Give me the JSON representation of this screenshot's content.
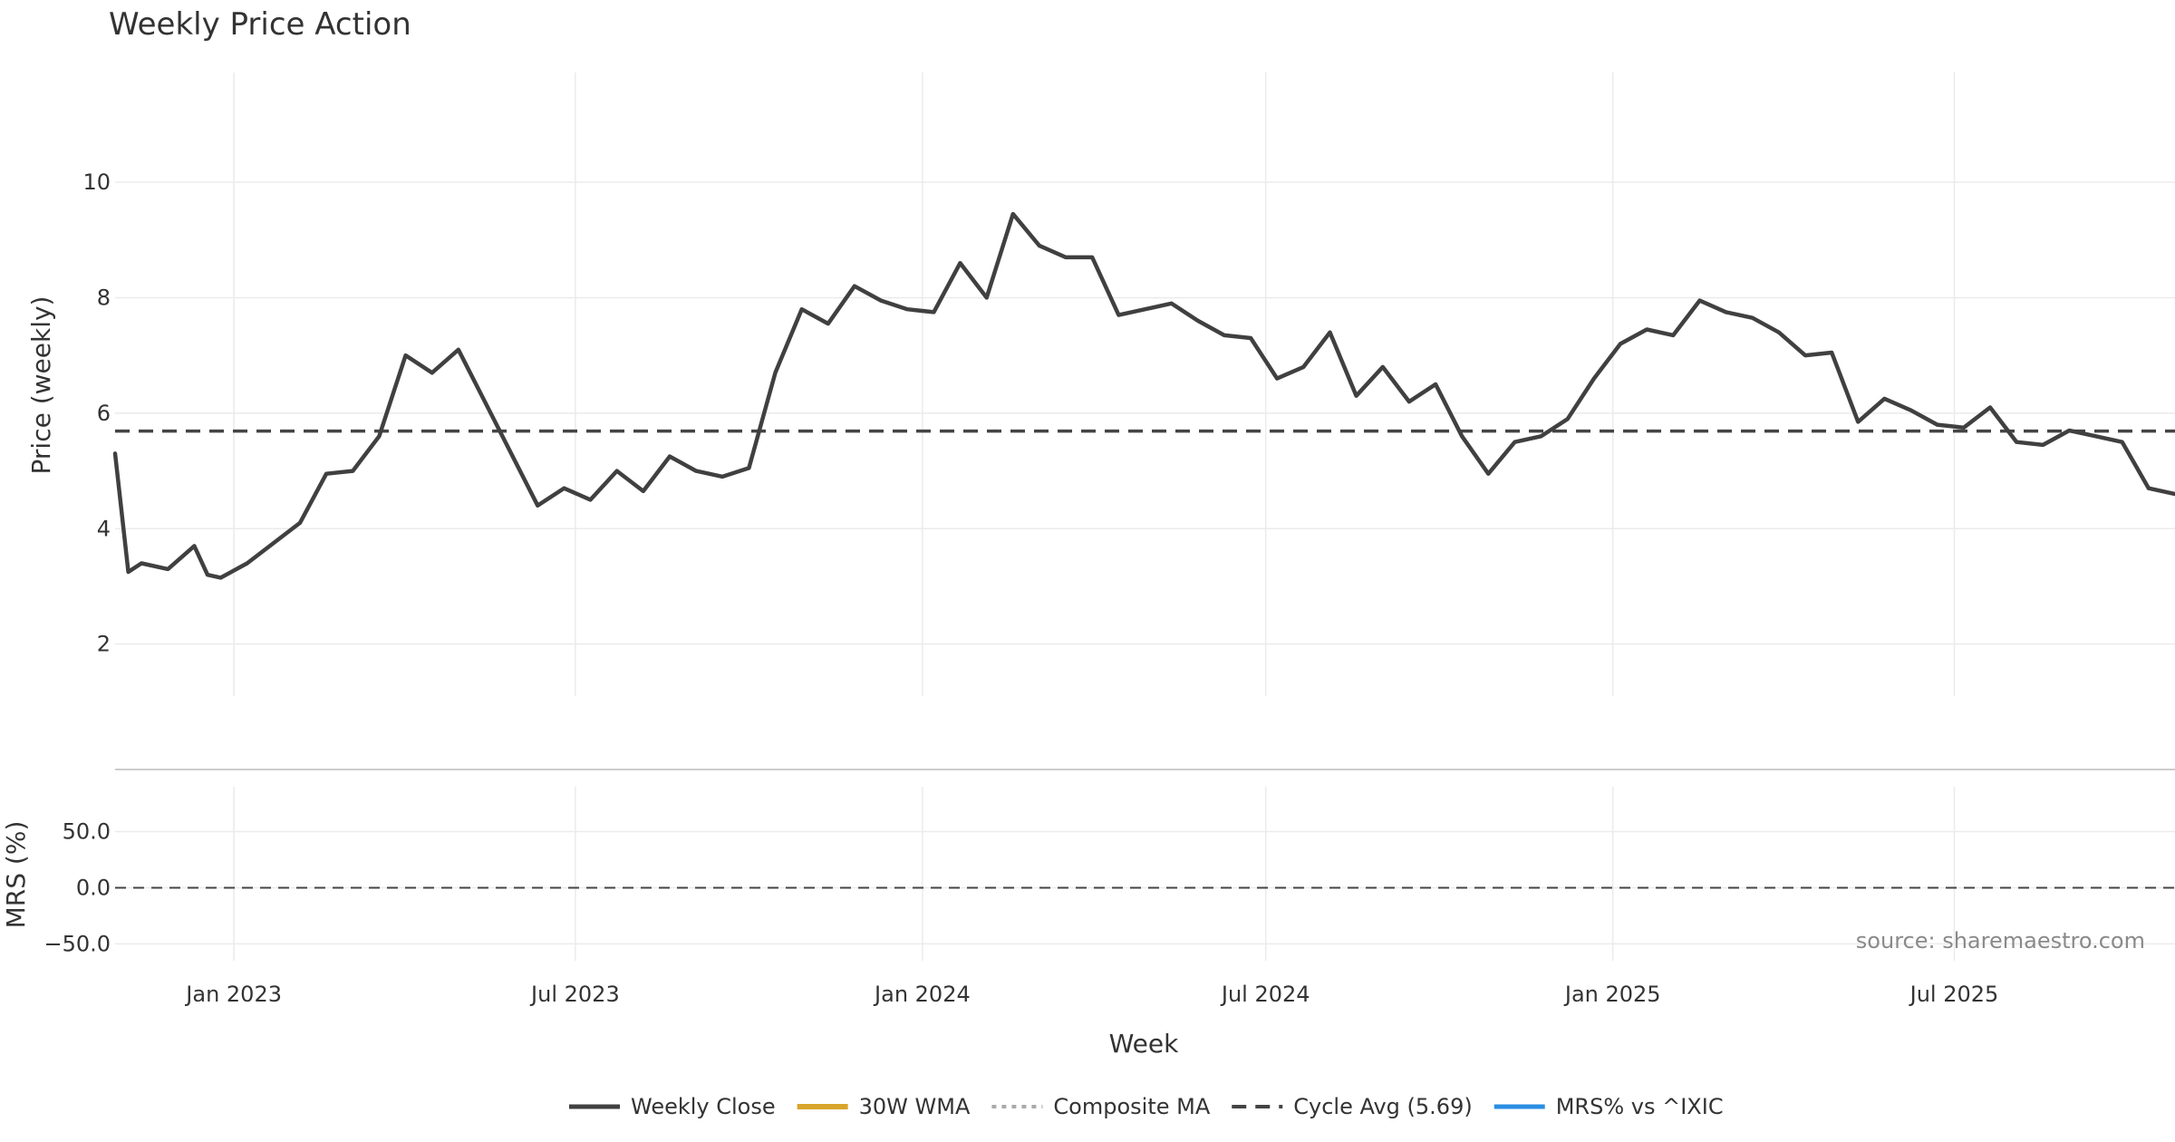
{
  "chart_data": {
    "type": "line",
    "title": "Weekly Price Action",
    "xlabel": "Week",
    "x_ticks": [
      "Jan 2023",
      "Jul 2023",
      "Jan 2024",
      "Jul 2024",
      "Jan 2025",
      "Jul 2025"
    ],
    "x_tick_dates": [
      "2023-01-01",
      "2023-07-01",
      "2024-01-01",
      "2024-07-01",
      "2025-01-01",
      "2025-07-01"
    ],
    "x_range": [
      "2022-10-30",
      "2025-10-26"
    ],
    "source": "source: sharemaestro.com",
    "colors": {
      "close": "#404040",
      "wma": "#d8a52b",
      "composite": "#aaaaaa",
      "cycle": "#444444",
      "mrs": "#2a8ee3",
      "buy": "#1a9e1a",
      "sell": "#cc1111",
      "grid": "#ebebeb"
    },
    "price_panel": {
      "ylabel": "Price (weekly)",
      "ylim": [
        1.1,
        11.9
      ],
      "y_ticks": [
        2,
        4,
        6,
        8,
        10
      ],
      "cycle_avg": 5.69
    },
    "mrs_panel": {
      "ylabel": "MRS (%)",
      "ylim": [
        -65,
        90
      ],
      "y_ticks": [
        50,
        0,
        -50
      ],
      "y_tick_labels": [
        "50.0",
        "0.0",
        "−50.0"
      ]
    },
    "series": [
      {
        "name": "Weekly Close",
        "key": "close",
        "points": [
          [
            "2022-10-30",
            5.3
          ],
          [
            "2022-11-06",
            3.25
          ],
          [
            "2022-11-13",
            3.4
          ],
          [
            "2022-11-27",
            3.3
          ],
          [
            "2022-12-11",
            3.7
          ],
          [
            "2022-12-18",
            3.2
          ],
          [
            "2022-12-25",
            3.15
          ],
          [
            "2023-01-08",
            3.4
          ],
          [
            "2023-02-05",
            4.1
          ],
          [
            "2023-02-19",
            4.95
          ],
          [
            "2023-03-05",
            5.0
          ],
          [
            "2023-03-19",
            5.6
          ],
          [
            "2023-04-02",
            7.0
          ],
          [
            "2023-04-16",
            6.7
          ],
          [
            "2023-04-30",
            7.1
          ],
          [
            "2023-05-14",
            6.2
          ],
          [
            "2023-05-28",
            5.3
          ],
          [
            "2023-06-11",
            4.4
          ],
          [
            "2023-06-25",
            4.7
          ],
          [
            "2023-07-09",
            4.5
          ],
          [
            "2023-07-23",
            5.0
          ],
          [
            "2023-08-06",
            4.65
          ],
          [
            "2023-08-20",
            5.25
          ],
          [
            "2023-09-03",
            5.0
          ],
          [
            "2023-09-17",
            4.9
          ],
          [
            "2023-10-01",
            5.05
          ],
          [
            "2023-10-15",
            6.7
          ],
          [
            "2023-10-29",
            7.8
          ],
          [
            "2023-11-12",
            7.55
          ],
          [
            "2023-11-26",
            8.2
          ],
          [
            "2023-12-10",
            7.95
          ],
          [
            "2023-12-24",
            7.8
          ],
          [
            "2024-01-07",
            7.75
          ],
          [
            "2024-01-21",
            8.6
          ],
          [
            "2024-02-04",
            8.0
          ],
          [
            "2024-02-18",
            9.45
          ],
          [
            "2024-03-03",
            8.9
          ],
          [
            "2024-03-17",
            8.7
          ],
          [
            "2024-03-31",
            8.7
          ],
          [
            "2024-04-14",
            7.7
          ],
          [
            "2024-04-28",
            7.8
          ],
          [
            "2024-05-12",
            7.9
          ],
          [
            "2024-05-26",
            7.6
          ],
          [
            "2024-06-09",
            7.35
          ],
          [
            "2024-06-23",
            7.3
          ],
          [
            "2024-07-07",
            6.6
          ],
          [
            "2024-07-21",
            6.8
          ],
          [
            "2024-08-04",
            7.4
          ],
          [
            "2024-08-18",
            6.3
          ],
          [
            "2024-09-01",
            6.8
          ],
          [
            "2024-09-15",
            6.2
          ],
          [
            "2024-09-29",
            6.5
          ],
          [
            "2024-10-13",
            5.6
          ],
          [
            "2024-10-27",
            4.95
          ],
          [
            "2024-11-10",
            5.5
          ],
          [
            "2024-11-24",
            5.6
          ],
          [
            "2024-12-08",
            5.9
          ],
          [
            "2024-12-22",
            6.6
          ],
          [
            "2025-01-05",
            7.2
          ],
          [
            "2025-01-19",
            7.45
          ],
          [
            "2025-02-02",
            7.35
          ],
          [
            "2025-02-16",
            7.95
          ],
          [
            "2025-03-02",
            7.75
          ],
          [
            "2025-03-16",
            7.65
          ],
          [
            "2025-03-30",
            7.4
          ],
          [
            "2025-04-13",
            7.0
          ],
          [
            "2025-04-27",
            7.05
          ],
          [
            "2025-05-11",
            5.85
          ],
          [
            "2025-05-25",
            6.25
          ],
          [
            "2025-06-08",
            6.05
          ],
          [
            "2025-06-22",
            5.8
          ],
          [
            "2025-07-06",
            5.75
          ],
          [
            "2025-07-20",
            6.1
          ],
          [
            "2025-08-03",
            5.5
          ],
          [
            "2025-08-17",
            5.45
          ],
          [
            "2025-08-31",
            5.7
          ],
          [
            "2025-09-14",
            5.6
          ],
          [
            "2025-09-28",
            5.5
          ],
          [
            "2025-10-12",
            4.7
          ],
          [
            "2025-10-26",
            4.6
          ]
        ]
      },
      {
        "name": "30W WMA",
        "key": "wma",
        "points": []
      },
      {
        "name": "Composite MA",
        "key": "composite",
        "points": []
      },
      {
        "name": "Cycle Avg (5.69)",
        "key": "cycle",
        "points": []
      },
      {
        "name": "MRS% vs ^IXIC",
        "key": "mrs",
        "points": []
      }
    ]
  }
}
